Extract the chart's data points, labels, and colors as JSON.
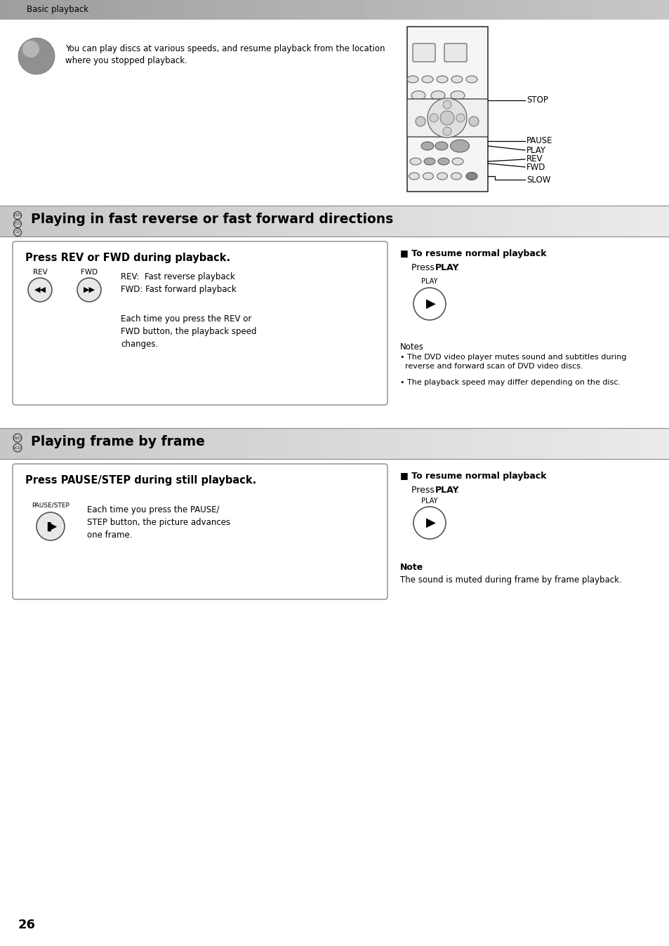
{
  "bg_color": "#ffffff",
  "header_text": "Basic playback",
  "section1_title": "Playing in fast reverse or fast forward directions",
  "section2_title": "Playing frame by frame",
  "intro_text1": "You can play discs at various speeds, and resume playback from the location",
  "intro_text2": "where you stopped playback.",
  "box1_title": "Press REV or FWD during playback.",
  "rev_fwd_text": "REV:  Fast reverse playback\nFWD: Fast forward playback",
  "each_time1": "Each time you press the REV or\nFWD button, the playback speed\nchanges.",
  "right1_title": "■ To resume normal playback",
  "press_play": "Press ",
  "play_bold": "PLAY",
  "press_play_dot": ".",
  "notes_title": "Notes",
  "note1": "• The DVD video player mutes sound and subtitles during\n  reverse and forward scan of DVD video discs.",
  "note2": "• The playback speed may differ depending on the disc.",
  "box2_title": "Press PAUSE/STEP during still playback.",
  "each_time2": "Each time you press the PAUSE/\nSTEP button, the picture advances\none frame.",
  "right2_title": "■ To resume normal playback",
  "note2_title": "Note",
  "note2_text": "The sound is muted during frame by frame playback.",
  "page_num": "26",
  "remote_labels": [
    "STOP",
    "PAUSE",
    "PLAY",
    "REV",
    "FWD",
    "SLOW"
  ]
}
